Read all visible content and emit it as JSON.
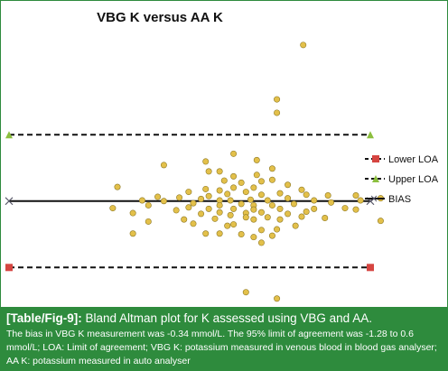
{
  "caption": {
    "tag": "[Table/Fig-9]:",
    "heading": "Bland Altman plot for K assessed using VBG and AA.",
    "body": "The bias in VBG K measurement was -0.34 mmol/L. The 95% limit of agreement was -1.28 to 0.6 mmol/L; LOA: Limit of agreement; VBG K: potassium measured in venous blood in blood gas analyser; AA K: potassium measured in auto analyser"
  },
  "colors": {
    "points_fill": "#e3c04a",
    "points_stroke": "#8f7a25",
    "lower_loa": "#d64541",
    "upper_loa": "#8cbf3f",
    "bias": "#555566",
    "caption_bg": "#2e8b3d"
  },
  "chart_data": {
    "type": "scatter",
    "title": "VBG K versus AA K",
    "xlabel": "",
    "ylabel": "",
    "axes_visible": false,
    "grid": false,
    "legend_position": "right",
    "xlim": [
      3.0,
      5.8
    ],
    "ylim": [
      -1.8,
      2.2
    ],
    "lines": {
      "bias": -0.34,
      "upper_loa": 0.6,
      "lower_loa": -1.28
    },
    "legend": [
      {
        "key": "lower_loa",
        "label": "Lower LOA"
      },
      {
        "key": "upper_loa",
        "label": "Upper LOA"
      },
      {
        "key": "bias",
        "label": "BIAS"
      }
    ],
    "points": [
      [
        4.9,
        1.87
      ],
      [
        4.73,
        1.1
      ],
      [
        4.73,
        0.91
      ],
      [
        4.45,
        0.33
      ],
      [
        4.0,
        0.17
      ],
      [
        4.27,
        0.22
      ],
      [
        4.6,
        0.24
      ],
      [
        4.6,
        0.03
      ],
      [
        4.7,
        0.12
      ],
      [
        4.36,
        0.08
      ],
      [
        4.45,
        0.01
      ],
      [
        4.29,
        0.08
      ],
      [
        4.7,
        -0.04
      ],
      [
        4.5,
        -0.08
      ],
      [
        4.39,
        -0.05
      ],
      [
        4.58,
        -0.15
      ],
      [
        4.63,
        -0.06
      ],
      [
        4.45,
        -0.15
      ],
      [
        4.8,
        -0.11
      ],
      [
        4.89,
        -0.18
      ],
      [
        4.27,
        -0.17
      ],
      [
        4.53,
        -0.21
      ],
      [
        4.36,
        -0.19
      ],
      [
        4.16,
        -0.21
      ],
      [
        4.41,
        -0.24
      ],
      [
        4.63,
        -0.25
      ],
      [
        4.75,
        -0.23
      ],
      [
        4.92,
        -0.25
      ],
      [
        5.06,
        -0.26
      ],
      [
        4.29,
        -0.27
      ],
      [
        4.1,
        -0.29
      ],
      [
        4.0,
        -0.34
      ],
      [
        4.56,
        -0.32
      ],
      [
        4.43,
        -0.33
      ],
      [
        4.36,
        -0.33
      ],
      [
        4.67,
        -0.33
      ],
      [
        4.8,
        -0.3
      ],
      [
        4.97,
        -0.33
      ],
      [
        5.08,
        -0.36
      ],
      [
        4.24,
        -0.31
      ],
      [
        4.19,
        -0.37
      ],
      [
        4.5,
        -0.38
      ],
      [
        4.58,
        -0.4
      ],
      [
        4.36,
        -0.4
      ],
      [
        4.7,
        -0.4
      ],
      [
        4.84,
        -0.38
      ],
      [
        4.29,
        -0.45
      ],
      [
        4.16,
        -0.43
      ],
      [
        4.45,
        -0.45
      ],
      [
        4.58,
        -0.46
      ],
      [
        4.75,
        -0.45
      ],
      [
        4.97,
        -0.45
      ],
      [
        5.17,
        -0.44
      ],
      [
        4.08,
        -0.47
      ],
      [
        4.36,
        -0.5
      ],
      [
        4.53,
        -0.51
      ],
      [
        4.63,
        -0.5
      ],
      [
        4.8,
        -0.52
      ],
      [
        4.92,
        -0.49
      ],
      [
        4.24,
        -0.52
      ],
      [
        4.43,
        -0.54
      ],
      [
        4.67,
        -0.57
      ],
      [
        4.53,
        -0.57
      ],
      [
        4.89,
        -0.56
      ],
      [
        4.33,
        -0.59
      ],
      [
        4.13,
        -0.6
      ],
      [
        4.75,
        -0.6
      ],
      [
        5.04,
        -0.58
      ],
      [
        4.58,
        -0.6
      ],
      [
        5.24,
        -0.46
      ],
      [
        5.4,
        -0.62
      ],
      [
        5.24,
        -0.26
      ],
      [
        5.4,
        -0.3
      ],
      [
        5.27,
        -0.33
      ],
      [
        3.7,
        -0.14
      ],
      [
        3.96,
        -0.28
      ],
      [
        3.9,
        -0.4
      ],
      [
        3.67,
        -0.44
      ],
      [
        3.8,
        -0.51
      ],
      [
        3.86,
        -0.33
      ],
      [
        3.9,
        -0.63
      ],
      [
        4.19,
        -0.66
      ],
      [
        4.41,
        -0.69
      ],
      [
        4.45,
        -0.67
      ],
      [
        4.63,
        -0.75
      ],
      [
        4.63,
        -0.93
      ],
      [
        4.73,
        -0.74
      ],
      [
        4.36,
        -0.8
      ],
      [
        4.5,
        -0.81
      ],
      [
        4.7,
        -0.83
      ],
      [
        4.85,
        -0.69
      ],
      [
        4.27,
        -0.8
      ],
      [
        4.58,
        -0.85
      ],
      [
        3.8,
        -0.8
      ],
      [
        4.53,
        -1.63
      ],
      [
        4.73,
        -1.72
      ]
    ]
  }
}
